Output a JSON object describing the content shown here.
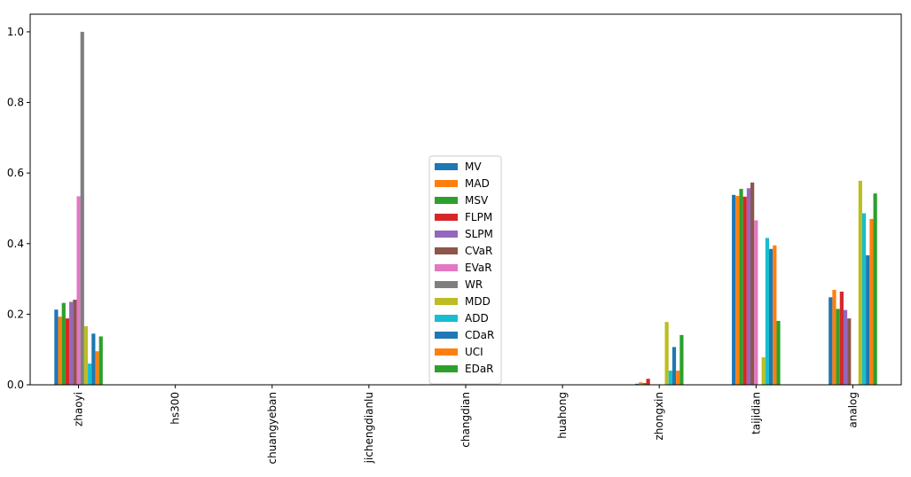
{
  "chart_data": {
    "type": "bar",
    "categories": [
      "zhaoyi",
      "hs300",
      "chuangyeban",
      "jichengdianlu",
      "changdian",
      "huahong",
      "zhongxin",
      "taijidian",
      "analog"
    ],
    "ylim": [
      0,
      1.05
    ],
    "yticks": [
      0.0,
      0.2,
      0.4,
      0.6,
      0.8,
      1.0
    ],
    "ytick_labels": [
      "0.0",
      "0.2",
      "0.4",
      "0.6",
      "0.8",
      "1.0"
    ],
    "grid": false,
    "legend_position": "center",
    "series": [
      {
        "name": "MV",
        "color": "#1f77b4",
        "values": [
          0.213,
          0,
          0,
          0,
          0,
          0,
          0.003,
          0.538,
          0.248
        ]
      },
      {
        "name": "MAD",
        "color": "#ff7f0e",
        "values": [
          0.193,
          0,
          0,
          0,
          0,
          0,
          0.007,
          0.535,
          0.269
        ]
      },
      {
        "name": "MSV",
        "color": "#2ca02c",
        "values": [
          0.232,
          0,
          0,
          0,
          0,
          0,
          0.005,
          0.555,
          0.215
        ]
      },
      {
        "name": "FLPM",
        "color": "#d62728",
        "values": [
          0.188,
          0,
          0,
          0,
          0,
          0,
          0.017,
          0.533,
          0.264
        ]
      },
      {
        "name": "SLPM",
        "color": "#9467bd",
        "values": [
          0.235,
          0,
          0,
          0,
          0,
          0,
          0.0,
          0.557,
          0.212
        ]
      },
      {
        "name": "CVaR",
        "color": "#8c564b",
        "values": [
          0.241,
          0,
          0,
          0,
          0,
          0,
          0.0,
          0.573,
          0.188
        ]
      },
      {
        "name": "EVaR",
        "color": "#e377c2",
        "values": [
          0.534,
          0,
          0,
          0,
          0,
          0,
          0.0,
          0.466,
          0.0
        ]
      },
      {
        "name": "WR",
        "color": "#7f7f7f",
        "values": [
          1.0,
          0,
          0,
          0,
          0,
          0,
          0.0,
          0.0,
          0.0
        ]
      },
      {
        "name": "MDD",
        "color": "#bcbd22",
        "values": [
          0.166,
          0,
          0,
          0,
          0,
          0,
          0.178,
          0.078,
          0.578
        ]
      },
      {
        "name": "ADD",
        "color": "#17becf",
        "values": [
          0.06,
          0,
          0,
          0,
          0,
          0,
          0.04,
          0.416,
          0.486
        ]
      },
      {
        "name": "CDaR",
        "color": "#1f77b4",
        "values": [
          0.145,
          0,
          0,
          0,
          0,
          0,
          0.107,
          0.385,
          0.367
        ]
      },
      {
        "name": "UCI",
        "color": "#ff7f0e",
        "values": [
          0.095,
          0,
          0,
          0,
          0,
          0,
          0.04,
          0.395,
          0.47
        ]
      },
      {
        "name": "EDaR",
        "color": "#2ca02c",
        "values": [
          0.137,
          0,
          0,
          0,
          0,
          0,
          0.141,
          0.181,
          0.542
        ]
      }
    ]
  }
}
